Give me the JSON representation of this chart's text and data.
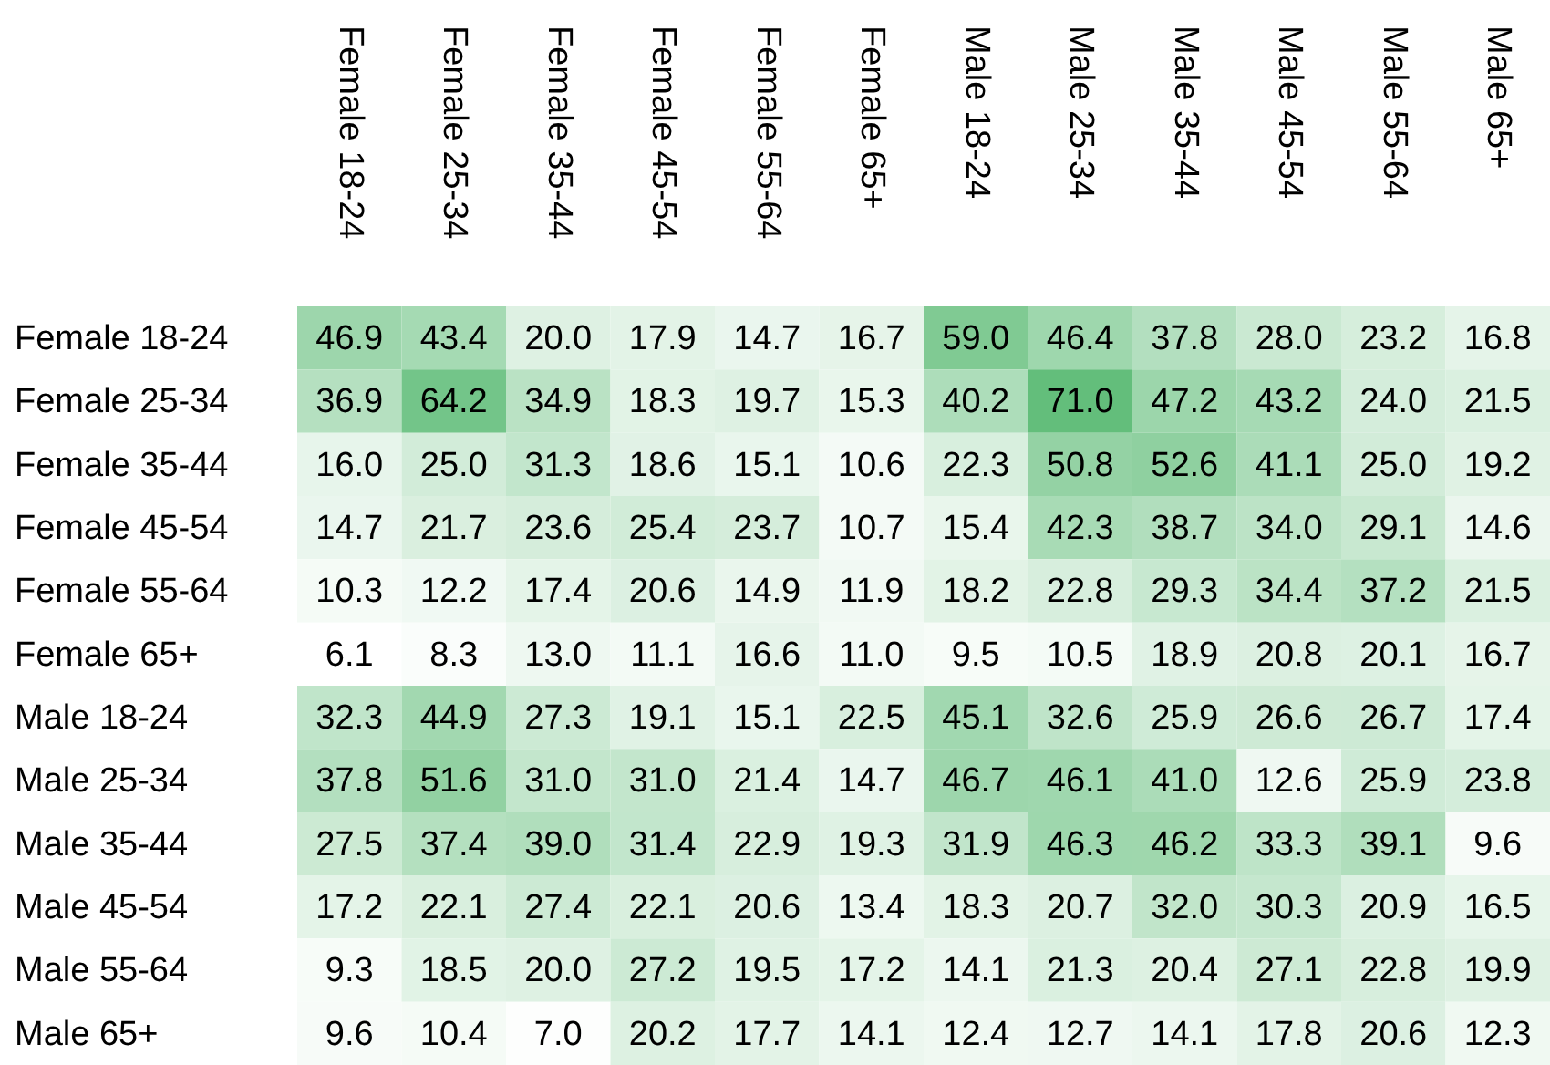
{
  "chart_data": {
    "type": "heatmap",
    "data_labels": true,
    "cell_labels": [
      [
        "46.9",
        "43.4",
        "20.0",
        "17.9",
        "14.7",
        "16.7",
        "59.0",
        "46.4",
        "37.8",
        "28.0",
        "23.2",
        "16.8"
      ],
      [
        "36.9",
        "64.2",
        "34.9",
        "18.3",
        "19.7",
        "15.3",
        "40.2",
        "71.0",
        "47.2",
        "43.2",
        "24.0",
        "21.5"
      ],
      [
        "16.0",
        "25.0",
        "31.3",
        "18.6",
        "15.1",
        "10.6",
        "22.3",
        "50.8",
        "52.6",
        "41.1",
        "25.0",
        "19.2"
      ],
      [
        "14.7",
        "21.7",
        "23.6",
        "25.4",
        "23.7",
        "10.7",
        "15.4",
        "42.3",
        "38.7",
        "34.0",
        "29.1",
        "14.6"
      ],
      [
        "10.3",
        "12.2",
        "17.4",
        "20.6",
        "14.9",
        "11.9",
        "18.2",
        "22.8",
        "29.3",
        "34.4",
        "37.2",
        "21.5"
      ],
      [
        "6.1",
        "8.3",
        "13.0",
        "11.1",
        "16.6",
        "11.0",
        "9.5",
        "10.5",
        "18.9",
        "20.8",
        "20.1",
        "16.7"
      ],
      [
        "32.3",
        "44.9",
        "27.3",
        "19.1",
        "15.1",
        "22.5",
        "45.1",
        "32.6",
        "25.9",
        "26.6",
        "26.7",
        "17.4"
      ],
      [
        "37.8",
        "51.6",
        "31.0",
        "31.0",
        "21.4",
        "14.7",
        "46.7",
        "46.1",
        "41.0",
        "12.6",
        "25.9",
        "23.8"
      ],
      [
        "27.5",
        "37.4",
        "39.0",
        "31.4",
        "22.9",
        "19.3",
        "31.9",
        "46.3",
        "46.2",
        "33.3",
        "39.1",
        "9.6"
      ],
      [
        "17.2",
        "22.1",
        "27.4",
        "22.1",
        "20.6",
        "13.4",
        "18.3",
        "20.7",
        "32.0",
        "30.3",
        "20.9",
        "16.5"
      ],
      [
        "9.3",
        "18.5",
        "20.0",
        "27.2",
        "19.5",
        "17.2",
        "14.1",
        "21.3",
        "20.4",
        "27.1",
        "22.8",
        "19.9"
      ],
      [
        "9.6",
        "10.4",
        "7.0",
        "20.2",
        "17.7",
        "14.1",
        "12.4",
        "12.7",
        "14.1",
        "17.8",
        "20.6",
        "12.3"
      ]
    ],
    "categories": [
      "Female 18-24",
      "Female 25-34",
      "Female 35-44",
      "Female 45-54",
      "Female 55-64",
      "Female 65+",
      "Male 18-24",
      "Male 25-34",
      "Male 35-44",
      "Male 45-54",
      "Male 55-64",
      "Male 65+"
    ],
    "y_categories": [
      "Female 18-24",
      "Female 25-34",
      "Female 35-44",
      "Female 45-54",
      "Female 55-64",
      "Female 65+",
      "Male 18-24",
      "Male 25-34",
      "Male 35-44",
      "Male 45-54",
      "Male 55-64",
      "Male 65+"
    ],
    "cells": [
      [
        46.9,
        43.4,
        20.0,
        17.9,
        14.7,
        16.7,
        59.0,
        46.4,
        37.8,
        28.0,
        23.2,
        16.8
      ],
      [
        36.9,
        64.2,
        34.9,
        18.3,
        19.7,
        15.3,
        40.2,
        71.0,
        47.2,
        43.2,
        24.0,
        21.5
      ],
      [
        16.0,
        25.0,
        31.3,
        18.6,
        15.1,
        10.6,
        22.3,
        50.8,
        52.6,
        41.1,
        25.0,
        19.2
      ],
      [
        14.7,
        21.7,
        23.6,
        25.4,
        23.7,
        10.7,
        15.4,
        42.3,
        38.7,
        34.0,
        29.1,
        14.6
      ],
      [
        10.3,
        12.2,
        17.4,
        20.6,
        14.9,
        11.9,
        18.2,
        22.8,
        29.3,
        34.4,
        37.2,
        21.5
      ],
      [
        6.1,
        8.3,
        13.0,
        11.1,
        16.6,
        11.0,
        9.5,
        10.5,
        18.9,
        20.8,
        20.1,
        16.7
      ],
      [
        32.3,
        44.9,
        27.3,
        19.1,
        15.1,
        22.5,
        45.1,
        32.6,
        25.9,
        26.6,
        26.7,
        17.4
      ],
      [
        37.8,
        51.6,
        31.0,
        31.0,
        21.4,
        14.7,
        46.7,
        46.1,
        41.0,
        12.6,
        25.9,
        23.8
      ],
      [
        27.5,
        37.4,
        39.0,
        31.4,
        22.9,
        19.3,
        31.9,
        46.3,
        46.2,
        33.3,
        39.1,
        9.6
      ],
      [
        17.2,
        22.1,
        27.4,
        22.1,
        20.6,
        13.4,
        18.3,
        20.7,
        32.0,
        30.3,
        20.9,
        16.5
      ],
      [
        9.3,
        18.5,
        20.0,
        27.2,
        19.5,
        17.2,
        14.1,
        21.3,
        20.4,
        27.1,
        22.8,
        19.9
      ],
      [
        9.6,
        10.4,
        7.0,
        20.2,
        17.7,
        14.1,
        12.4,
        12.7,
        14.1,
        17.8,
        20.6,
        12.3
      ]
    ]
  }
}
